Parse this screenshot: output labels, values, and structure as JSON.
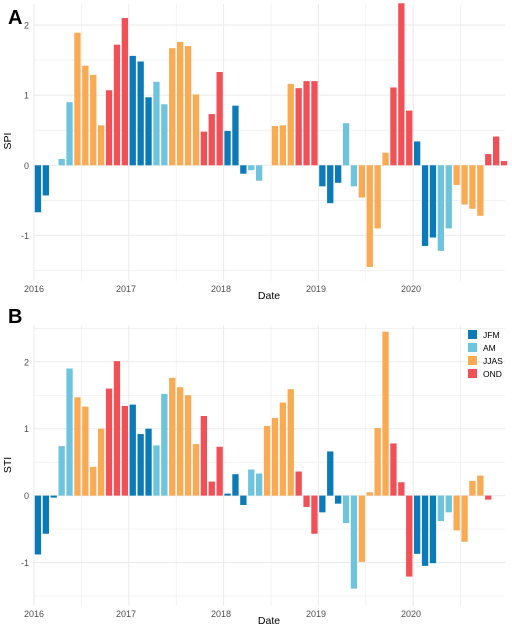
{
  "colors": {
    "JFM": "#0a7ab8",
    "AM": "#6ec4dd",
    "JJAS": "#f9aa52",
    "OND": "#f05056",
    "grid": "#ebebeb",
    "axis": "#444444"
  },
  "legend": {
    "items": [
      {
        "key": "JFM",
        "label": "JFM"
      },
      {
        "key": "AM",
        "label": "AM"
      },
      {
        "key": "JJAS",
        "label": "JJAS"
      },
      {
        "key": "OND",
        "label": "OND"
      }
    ],
    "position": "top-right of panel B"
  },
  "chart_data": [
    {
      "panel": "A",
      "type": "bar",
      "title": "",
      "xlabel": "Date",
      "ylabel": "SPI",
      "x_ticks": [
        "2016",
        "2017",
        "2018",
        "2019",
        "2020"
      ],
      "y_ticks": [
        "-1",
        "0",
        "1",
        "2"
      ],
      "xlim": [
        "2016-01",
        "2020-12"
      ],
      "ylim": [
        -1.65,
        2.3
      ],
      "grid": true,
      "months": [
        "2016-01",
        "2016-02",
        "2016-03",
        "2016-04",
        "2016-05",
        "2016-06",
        "2016-07",
        "2016-08",
        "2016-09",
        "2016-10",
        "2016-11",
        "2016-12",
        "2017-01",
        "2017-02",
        "2017-03",
        "2017-04",
        "2017-05",
        "2017-06",
        "2017-07",
        "2017-08",
        "2017-09",
        "2017-10",
        "2017-11",
        "2017-12",
        "2018-01",
        "2018-02",
        "2018-03",
        "2018-04",
        "2018-05",
        "2018-06",
        "2018-07",
        "2018-08",
        "2018-09",
        "2018-10",
        "2018-11",
        "2018-12",
        "2019-01",
        "2019-02",
        "2019-03",
        "2019-04",
        "2019-05",
        "2019-06",
        "2019-07",
        "2019-08",
        "2019-09",
        "2019-10",
        "2019-11",
        "2019-12",
        "2020-01",
        "2020-02",
        "2020-03",
        "2020-04",
        "2020-05",
        "2020-06",
        "2020-07",
        "2020-08",
        "2020-09",
        "2020-10",
        "2020-11",
        "2020-12"
      ],
      "season": [
        "JFM",
        "JFM",
        "JFM",
        "AM",
        "AM",
        "JJAS",
        "JJAS",
        "JJAS",
        "JJAS",
        "OND",
        "OND",
        "OND",
        "JFM",
        "JFM",
        "JFM",
        "AM",
        "AM",
        "JJAS",
        "JJAS",
        "JJAS",
        "JJAS",
        "OND",
        "OND",
        "OND",
        "JFM",
        "JFM",
        "JFM",
        "AM",
        "AM",
        "JJAS",
        "JJAS",
        "JJAS",
        "JJAS",
        "OND",
        "OND",
        "OND",
        "JFM",
        "JFM",
        "JFM",
        "AM",
        "AM",
        "JJAS",
        "JJAS",
        "JJAS",
        "JJAS",
        "OND",
        "OND",
        "OND",
        "JFM",
        "JFM",
        "JFM",
        "AM",
        "AM",
        "JJAS",
        "JJAS",
        "JJAS",
        "JJAS",
        "OND",
        "OND",
        "OND"
      ],
      "values": [
        -0.67,
        -0.43,
        null,
        0.09,
        0.9,
        1.89,
        1.42,
        1.29,
        0.57,
        1.07,
        1.72,
        2.1,
        1.56,
        1.48,
        0.97,
        1.19,
        0.87,
        1.67,
        1.76,
        1.7,
        1.01,
        0.48,
        0.73,
        1.33,
        0.49,
        0.85,
        -0.12,
        -0.07,
        -0.22,
        null,
        0.56,
        0.57,
        1.16,
        1.1,
        1.2,
        1.2,
        -0.3,
        -0.54,
        -0.25,
        0.6,
        -0.3,
        -0.46,
        -1.45,
        -0.9,
        0.18,
        1.11,
        2.31,
        0.78,
        0.34,
        -1.15,
        -1.03,
        -1.22,
        -0.9,
        -0.28,
        -0.56,
        -0.62,
        -0.72,
        0.16,
        0.41,
        0.06
      ]
    },
    {
      "panel": "B",
      "type": "bar",
      "title": "",
      "xlabel": "Date",
      "ylabel": "STI",
      "x_ticks": [
        "2016",
        "2017",
        "2018",
        "2019",
        "2020"
      ],
      "y_ticks": [
        "-1",
        "0",
        "1",
        "2"
      ],
      "xlim": [
        "2016-01",
        "2020-12"
      ],
      "ylim": [
        -1.65,
        2.55
      ],
      "grid": true,
      "months": [
        "2016-01",
        "2016-02",
        "2016-03",
        "2016-04",
        "2016-05",
        "2016-06",
        "2016-07",
        "2016-08",
        "2016-09",
        "2016-10",
        "2016-11",
        "2016-12",
        "2017-01",
        "2017-02",
        "2017-03",
        "2017-04",
        "2017-05",
        "2017-06",
        "2017-07",
        "2017-08",
        "2017-09",
        "2017-10",
        "2017-11",
        "2017-12",
        "2018-01",
        "2018-02",
        "2018-03",
        "2018-04",
        "2018-05",
        "2018-06",
        "2018-07",
        "2018-08",
        "2018-09",
        "2018-10",
        "2018-11",
        "2018-12",
        "2019-01",
        "2019-02",
        "2019-03",
        "2019-04",
        "2019-05",
        "2019-06",
        "2019-07",
        "2019-08",
        "2019-09",
        "2019-10",
        "2019-11",
        "2019-12",
        "2020-01",
        "2020-02",
        "2020-03",
        "2020-04",
        "2020-05",
        "2020-06",
        "2020-07",
        "2020-08",
        "2020-09",
        "2020-10",
        "2020-11",
        "2020-12"
      ],
      "season": [
        "JFM",
        "JFM",
        "JFM",
        "AM",
        "AM",
        "JJAS",
        "JJAS",
        "JJAS",
        "JJAS",
        "OND",
        "OND",
        "OND",
        "JFM",
        "JFM",
        "JFM",
        "AM",
        "AM",
        "JJAS",
        "JJAS",
        "JJAS",
        "JJAS",
        "OND",
        "OND",
        "OND",
        "JFM",
        "JFM",
        "JFM",
        "AM",
        "AM",
        "JJAS",
        "JJAS",
        "JJAS",
        "JJAS",
        "OND",
        "OND",
        "OND",
        "JFM",
        "JFM",
        "JFM",
        "AM",
        "AM",
        "JJAS",
        "JJAS",
        "JJAS",
        "JJAS",
        "OND",
        "OND",
        "OND",
        "JFM",
        "JFM",
        "JFM",
        "AM",
        "AM",
        "JJAS",
        "JJAS",
        "JJAS",
        "JJAS",
        "OND",
        "OND",
        "OND"
      ],
      "values": [
        -0.88,
        -0.57,
        -0.03,
        0.74,
        1.9,
        1.47,
        1.33,
        0.43,
        1.0,
        1.6,
        2.01,
        1.34,
        1.36,
        0.92,
        1.0,
        0.75,
        1.52,
        1.76,
        1.62,
        1.5,
        0.77,
        1.19,
        0.21,
        0.73,
        0.03,
        0.32,
        -0.14,
        0.39,
        0.33,
        1.04,
        1.16,
        1.39,
        1.59,
        0.36,
        -0.17,
        -0.57,
        -0.25,
        0.66,
        -0.12,
        -0.41,
        -1.39,
        -0.99,
        0.05,
        1.01,
        2.45,
        0.78,
        0.2,
        -1.21,
        -0.87,
        -1.05,
        -1.01,
        -0.38,
        -0.25,
        -0.52,
        -0.69,
        0.22,
        0.3,
        -0.06,
        null,
        null
      ]
    }
  ]
}
